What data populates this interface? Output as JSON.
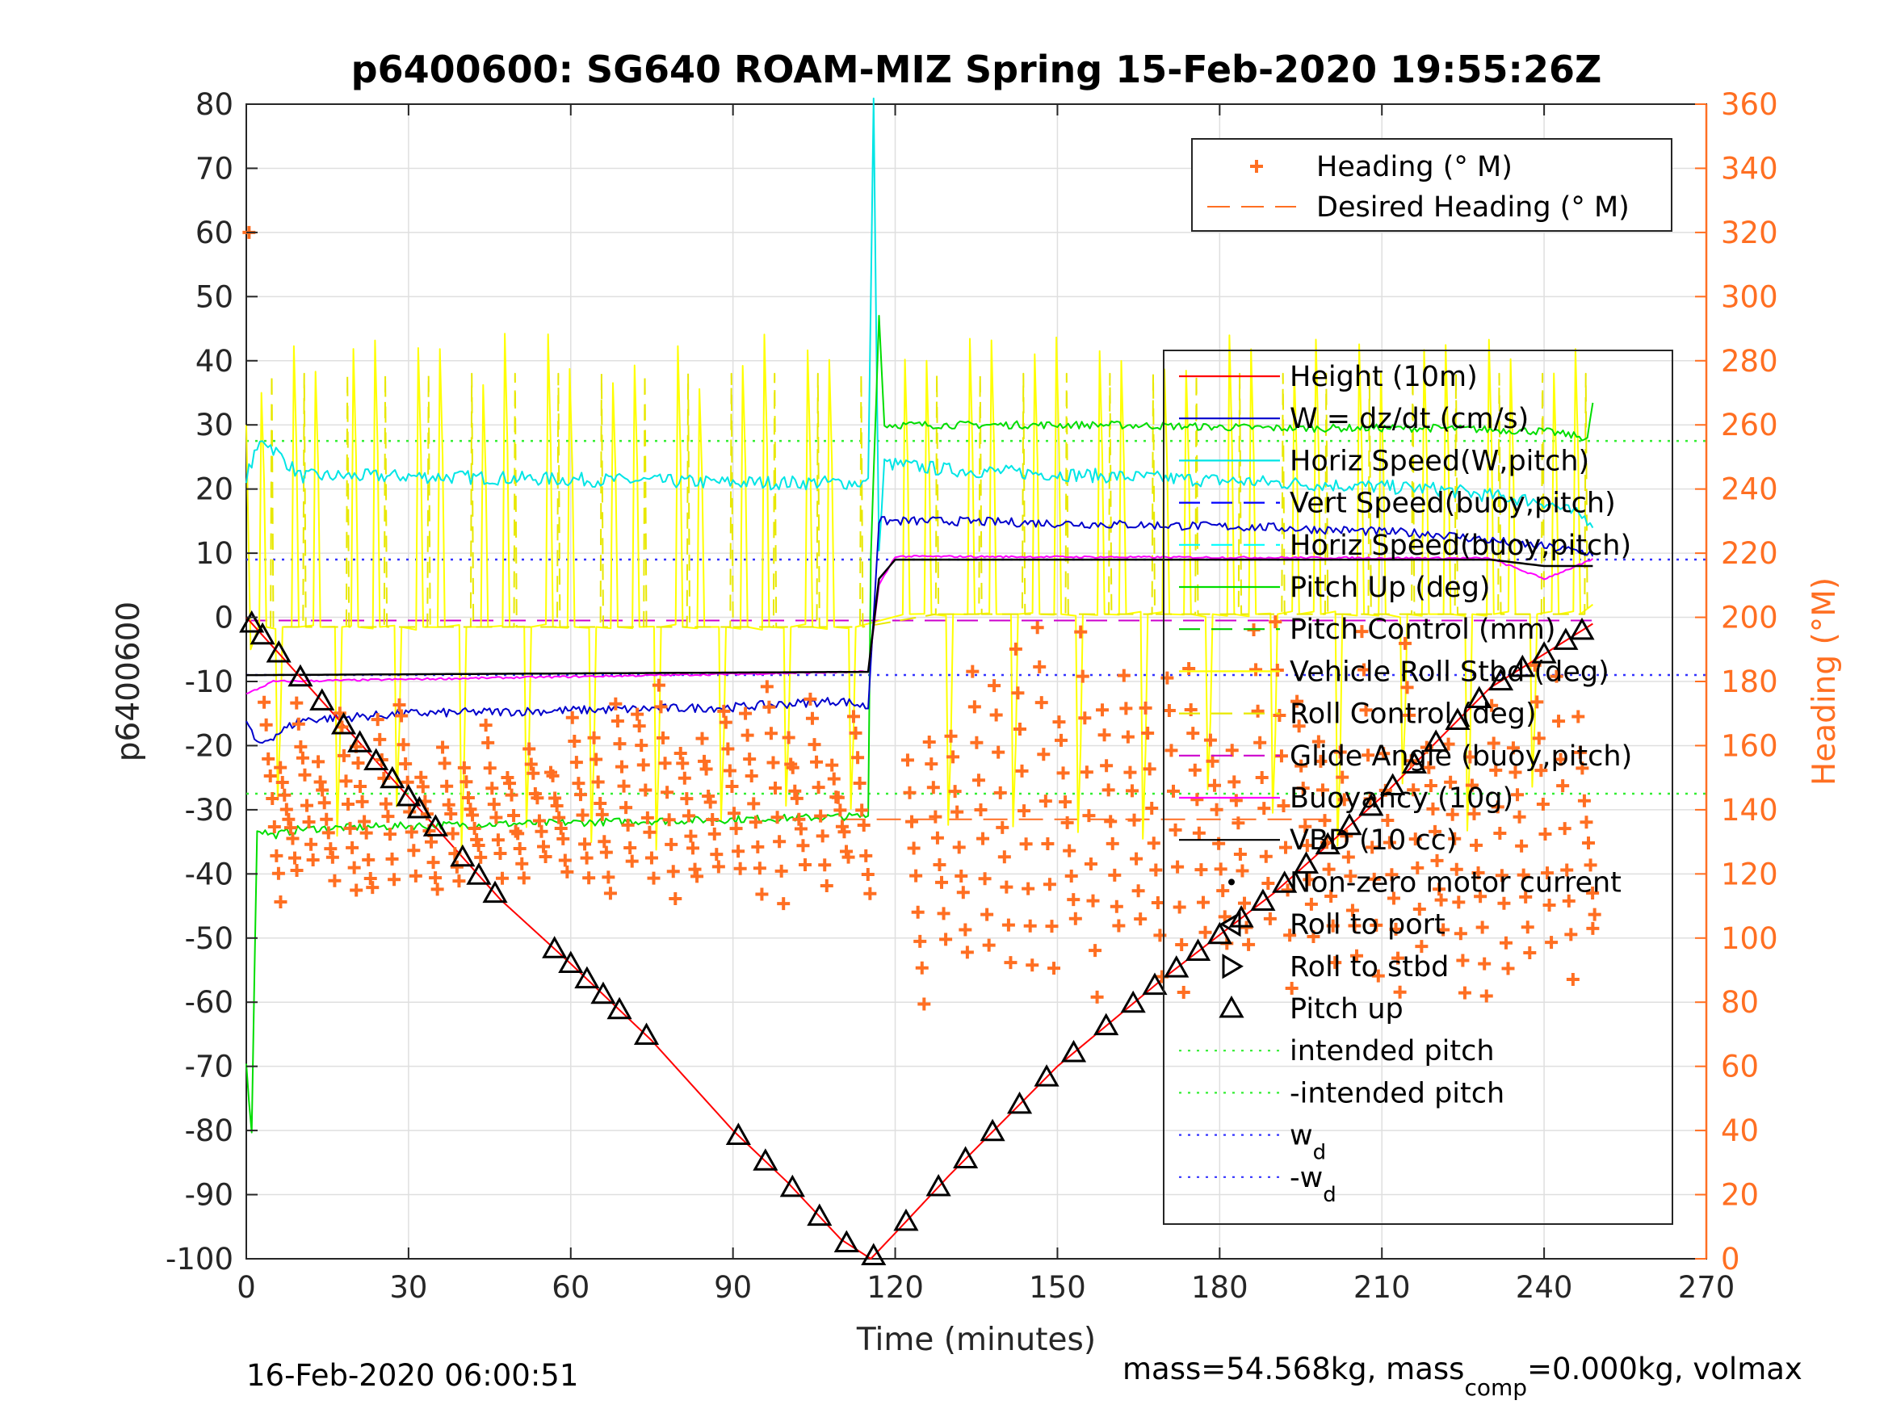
{
  "chart_data": {
    "type": "line",
    "title": "p6400600: SG640 ROAM-MIZ Spring 15-Feb-2020 19:55:26Z",
    "xlabel": "Time (minutes)",
    "ylabel": "p6400600",
    "y2label": "Heading (°M)",
    "xlim": [
      0,
      270
    ],
    "ylim": [
      -100,
      80
    ],
    "y2lim": [
      0,
      360
    ],
    "xticks": [
      "0",
      "30",
      "60",
      "90",
      "120",
      "150",
      "180",
      "210",
      "240",
      "270"
    ],
    "yticks": [
      "80",
      "70",
      "60",
      "50",
      "40",
      "30",
      "20",
      "10",
      "0",
      "-10",
      "-20",
      "-30",
      "-40",
      "-50",
      "-60",
      "-70",
      "-80",
      "-90",
      "-100"
    ],
    "y2ticks": [
      "360",
      "340",
      "320",
      "300",
      "280",
      "260",
      "240",
      "220",
      "200",
      "180",
      "160",
      "140",
      "120",
      "100",
      "80",
      "60",
      "40",
      "20",
      "0"
    ],
    "grid": true,
    "colors": {
      "height": "#ff0000",
      "w": "#0000cc",
      "horiz_speed": "#00e5e5",
      "vert_speed_model": "#0000ff",
      "horiz_speed_model": "#00ffff",
      "pitch": "#00dd00",
      "pitch_control": "#00cc00",
      "roll": "#ffff00",
      "roll_control": "#e8e800",
      "glide": "#cc00cc",
      "buoyancy": "#ff00ff",
      "vbd": "#000000",
      "heading": "#ff6f22",
      "intended": "#33ee33",
      "wd": "#3333ff"
    },
    "legend_heading": [
      "Heading (° M)",
      "Desired Heading (° M)"
    ],
    "legend_main": [
      "Height (10m)",
      "W = dz/dt (cm/s)",
      "Horiz Speed(W,pitch)",
      "Vert Speed(buoy,pitch)",
      "Horiz Speed(buoy,pitch)",
      "Pitch Up (deg)",
      "Pitch Control (mm)",
      "Vehicle Roll Stbd (deg)",
      "Roll Control (deg)",
      "Glide Angle (buoy,pitch)",
      "Buoyancy (10g)",
      "VBD (10 cc)",
      "Non-zero motor current",
      "Roll to port",
      "Roll to stbd",
      "Pitch up",
      "intended pitch",
      "-intended pitch",
      "w",
      "-w"
    ],
    "legend_sub": "d",
    "series": [
      {
        "name": "Height (10m)",
        "x": [
          0,
          30,
          47,
          60,
          75,
          90,
          100,
          110,
          115.5,
          120,
          130,
          150,
          170,
          190,
          210,
          230,
          249
        ],
        "values": [
          0,
          -28,
          -44,
          -54,
          -66,
          -80,
          -88,
          -97,
          -100,
          -96,
          -87,
          -70,
          -56,
          -43,
          -28,
          -11,
          -1
        ]
      },
      {
        "name": "W = dz/dt (cm/s)",
        "x": [
          0,
          2,
          10,
          30,
          60,
          90,
          110,
          115,
          117,
          130,
          160,
          190,
          220,
          240,
          249
        ],
        "values": [
          -16,
          -20,
          -16,
          -15,
          -14.5,
          -14,
          -13,
          -14,
          15,
          15,
          14.5,
          14,
          13,
          11,
          10
        ]
      },
      {
        "name": "Horiz Speed(W,pitch)",
        "x": [
          0,
          3,
          10,
          30,
          60,
          90,
          110,
          115,
          116,
          117,
          118,
          130,
          160,
          190,
          220,
          240,
          249
        ],
        "values": [
          22,
          28,
          22,
          22,
          21.5,
          21,
          21,
          21,
          80,
          10,
          24,
          23,
          22,
          21,
          20,
          18,
          15
        ]
      },
      {
        "name": "Pitch Up (deg)",
        "x": [
          0,
          1,
          2,
          5,
          10,
          30,
          60,
          90,
          115,
          115.5,
          117,
          118,
          125,
          160,
          190,
          220,
          240,
          248,
          249
        ],
        "values": [
          -70,
          -80,
          -33,
          -34,
          -33,
          -32.5,
          -32,
          -31.5,
          -31,
          10,
          47,
          30,
          30,
          30,
          29.5,
          29.5,
          29,
          28,
          33
        ]
      },
      {
        "name": "Buoyancy (10g)",
        "x": [
          0,
          5,
          115,
          117,
          120,
          230,
          240,
          249
        ],
        "values": [
          -12,
          -10,
          -8.5,
          5,
          9.5,
          9.2,
          6,
          9
        ]
      },
      {
        "name": "VBD (10 cc)",
        "x": [
          0,
          3,
          115,
          117,
          120,
          230,
          240,
          249
        ],
        "values": [
          -9,
          -9,
          -8.5,
          6,
          9,
          9,
          8,
          8
        ]
      },
      {
        "name": "Glide Angle (buoy,pitch)",
        "x": [
          0,
          270
        ],
        "values": [
          -0.5,
          -0.5
        ]
      }
    ],
    "reference_lines": {
      "intended_pitch": 27.5,
      "neg_intended_pitch": -27.5,
      "wd": 9,
      "neg_wd": -9,
      "desired_heading_deg": 137
    },
    "roll_spike_times": [
      3,
      6,
      9,
      13,
      17,
      20,
      24,
      28,
      32,
      36,
      40,
      44,
      48,
      52,
      56,
      60,
      64,
      68,
      72,
      76,
      80,
      84,
      88,
      92,
      96,
      100,
      104,
      108,
      112,
      122,
      126,
      130,
      134,
      138,
      142,
      146,
      150,
      154,
      158,
      162,
      166,
      170,
      174,
      178,
      182,
      186,
      190,
      194,
      198,
      202,
      206,
      210,
      214,
      218,
      222,
      226,
      230,
      234,
      238,
      242,
      246
    ],
    "pitch_marker_times": [
      1,
      3,
      6,
      10,
      14,
      18,
      21,
      24,
      27,
      30,
      32,
      35,
      40,
      43,
      46,
      57,
      60,
      63,
      66,
      69,
      74,
      91,
      96,
      101,
      106,
      111,
      116,
      122,
      128,
      133,
      138,
      143,
      148,
      153,
      159,
      164,
      168,
      172,
      176,
      180,
      184,
      188,
      192,
      196,
      200,
      204,
      208,
      212,
      216,
      220,
      224,
      228,
      232,
      236,
      240,
      244,
      247
    ],
    "heading_start": [
      0.5,
      320
    ],
    "heading_end": [
      249,
      103
    ]
  },
  "footer": {
    "date": "16-Feb-2020 06:00:51",
    "mass_text_1": "mass=54.568kg, mass",
    "mass_sub": "comp",
    "mass_text_2": "=0.000kg, volmax"
  }
}
